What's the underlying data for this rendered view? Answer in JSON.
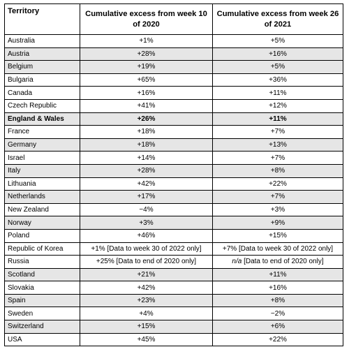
{
  "table": {
    "headers": [
      "Territory",
      "Cumulative excess from week 10 of 2020",
      "Cumulative excess from week 26 of 2021"
    ],
    "rows": [
      {
        "territory": "Australia",
        "col1": "+1%",
        "col2": "+5%",
        "shade": false,
        "bold": false
      },
      {
        "territory": "Austria",
        "col1": "+28%",
        "col2": "+16%",
        "shade": true,
        "bold": false
      },
      {
        "territory": "Belgium",
        "col1": "+19%",
        "col2": "+5%",
        "shade": true,
        "bold": false
      },
      {
        "territory": "Bulgaria",
        "col1": "+65%",
        "col2": "+36%",
        "shade": false,
        "bold": false
      },
      {
        "territory": "Canada",
        "col1": "+16%",
        "col2": "+11%",
        "shade": false,
        "bold": false
      },
      {
        "territory": "Czech Republic",
        "col1": "+41%",
        "col2": "+12%",
        "shade": false,
        "bold": false
      },
      {
        "territory": "England & Wales",
        "col1": "+26%",
        "col2": "+11%",
        "shade": true,
        "bold": true
      },
      {
        "territory": "France",
        "col1": "+18%",
        "col2": "+7%",
        "shade": false,
        "bold": false
      },
      {
        "territory": "Germany",
        "col1": "+18%",
        "col2": "+13%",
        "shade": true,
        "bold": false
      },
      {
        "territory": "Israel",
        "col1": "+14%",
        "col2": "+7%",
        "shade": false,
        "bold": false
      },
      {
        "territory": "Italy",
        "col1": "+28%",
        "col2": "+8%",
        "shade": true,
        "bold": false
      },
      {
        "territory": "Lithuania",
        "col1": "+42%",
        "col2": "+22%",
        "shade": false,
        "bold": false
      },
      {
        "territory": "Netherlands",
        "col1": "+17%",
        "col2": "+7%",
        "shade": true,
        "bold": false
      },
      {
        "territory": "New Zealand",
        "col1": "−4%",
        "col2": "+3%",
        "shade": false,
        "bold": false
      },
      {
        "territory": "Norway",
        "col1": "+3%",
        "col2": "+9%",
        "shade": true,
        "bold": false
      },
      {
        "territory": "Poland",
        "col1": "+46%",
        "col2": "+15%",
        "shade": false,
        "bold": false
      },
      {
        "territory": "Republic of Korea",
        "col1": "+1% [Data to week 30 of 2022 only]",
        "col2": "+7% [Data to week 30 of 2022 only]",
        "shade": false,
        "bold": false
      },
      {
        "territory": "Russia",
        "col1": "+25% [Data to end of 2020 only]",
        "col2_italic": "n/a",
        "col2": " [Data to end of 2020 only]",
        "shade": false,
        "bold": false
      },
      {
        "territory": "Scotland",
        "col1": "+21%",
        "col2": "+11%",
        "shade": true,
        "bold": false
      },
      {
        "territory": "Slovakia",
        "col1": "+42%",
        "col2": "+16%",
        "shade": false,
        "bold": false
      },
      {
        "territory": "Spain",
        "col1": "+23%",
        "col2": "+8%",
        "shade": true,
        "bold": false
      },
      {
        "territory": "Sweden",
        "col1": "+4%",
        "col2": "−2%",
        "shade": false,
        "bold": false
      },
      {
        "territory": "Switzerland",
        "col1": "+15%",
        "col2": "+6%",
        "shade": true,
        "bold": false
      },
      {
        "territory": "USA",
        "col1": "+45%",
        "col2": "+22%",
        "shade": false,
        "bold": false
      }
    ]
  }
}
